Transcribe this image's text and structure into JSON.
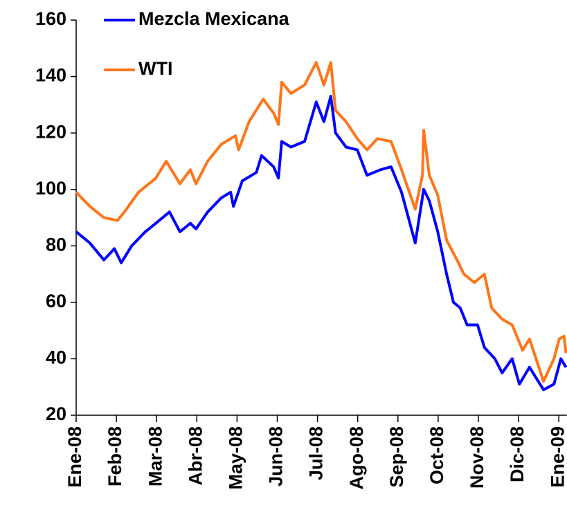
{
  "chart_data": {
    "type": "line",
    "xlim": [
      0,
      12.2
    ],
    "xticks": [
      {
        "value": 0,
        "label": "Ene-08"
      },
      {
        "value": 1,
        "label": "Feb-08"
      },
      {
        "value": 2,
        "label": "Mar-08"
      },
      {
        "value": 3,
        "label": "Abr-08"
      },
      {
        "value": 4,
        "label": "May-08"
      },
      {
        "value": 5,
        "label": "Jun-08"
      },
      {
        "value": 6,
        "label": "Jul-08"
      },
      {
        "value": 7,
        "label": "Ago-08"
      },
      {
        "value": 8,
        "label": "Sep-08"
      },
      {
        "value": 9,
        "label": "Oct-08"
      },
      {
        "value": 10,
        "label": "Nov-08"
      },
      {
        "value": 11,
        "label": "Dic-08"
      },
      {
        "value": 12,
        "label": "Ene-09"
      }
    ],
    "ylim": [
      20,
      160
    ],
    "yticks": [
      20,
      40,
      60,
      80,
      100,
      120,
      140,
      160
    ],
    "legend": "top-left",
    "series": [
      {
        "name": "Mezcla Mexicana",
        "color": "#0000ff",
        "x": [
          0,
          0.34,
          0.69,
          0.95,
          1.12,
          1.38,
          1.72,
          1.98,
          2.32,
          2.58,
          2.84,
          2.98,
          3.27,
          3.61,
          3.84,
          3.91,
          4.13,
          4.48,
          4.61,
          4.91,
          5.03,
          5.11,
          5.34,
          5.68,
          5.97,
          6.16,
          6.33,
          6.45,
          6.71,
          6.99,
          7.23,
          7.57,
          7.83,
          8.09,
          8.43,
          8.64,
          8.78,
          8.99,
          9.21,
          9.38,
          9.55,
          9.72,
          9.98,
          10.15,
          10.41,
          10.59,
          10.84,
          11.02,
          11.27,
          11.62,
          11.88,
          12.05,
          12.18
        ],
        "values": [
          85,
          81,
          75,
          79,
          74,
          80,
          85,
          88,
          92,
          85,
          88,
          86,
          92,
          97,
          99,
          94,
          103,
          106,
          112,
          108,
          104,
          117,
          115,
          117,
          131,
          124,
          133,
          120,
          115,
          114,
          105,
          107,
          108,
          99,
          81,
          100,
          96,
          85,
          70,
          60,
          58,
          52,
          52,
          44,
          40,
          35,
          40,
          31,
          37,
          29,
          31,
          40,
          37
        ]
      },
      {
        "name": "WTI",
        "color": "#ff7519",
        "x": [
          0,
          0.34,
          0.69,
          1.03,
          1.2,
          1.55,
          1.98,
          2.24,
          2.58,
          2.84,
          2.98,
          3.27,
          3.61,
          3.96,
          4.04,
          4.3,
          4.65,
          4.91,
          5.03,
          5.11,
          5.34,
          5.68,
          5.97,
          6.16,
          6.33,
          6.45,
          6.71,
          6.99,
          7.23,
          7.49,
          7.83,
          8.09,
          8.43,
          8.61,
          8.64,
          8.78,
          8.99,
          9.21,
          9.47,
          9.64,
          9.9,
          10.15,
          10.33,
          10.59,
          10.84,
          11.1,
          11.27,
          11.62,
          11.88,
          12.01,
          12.13,
          12.18
        ],
        "values": [
          99,
          94,
          90,
          89,
          92,
          99,
          104,
          110,
          102,
          107,
          102,
          110,
          116,
          119,
          114,
          124,
          132,
          127,
          123,
          138,
          134,
          137,
          145,
          137,
          145,
          128,
          124,
          118,
          114,
          118,
          117,
          107,
          93,
          105,
          121,
          105,
          98,
          82,
          75,
          70,
          67,
          70,
          58,
          54,
          52,
          43,
          47,
          32,
          40,
          47,
          48,
          42
        ]
      }
    ]
  }
}
